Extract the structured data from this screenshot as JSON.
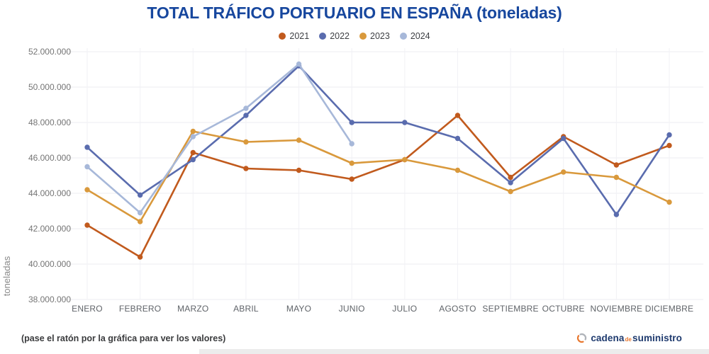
{
  "title": "TOTAL TRÁFICO PORTUARIO EN ESPAÑA (toneladas)",
  "footer": {
    "hint": "(pase el ratón por la gráfica para ver los valores)",
    "logo": {
      "part1": "cadena",
      "part2": "de",
      "part3": "suministro"
    }
  },
  "colors": {
    "title": "#17479e",
    "grid": "#ededf2",
    "axis_text": "#757575",
    "month_text": "#5f6368",
    "logo_navy": "#1e3a6e",
    "logo_orange": "#e8772e",
    "logo_gray": "#b0b4ba"
  },
  "chart_data": {
    "type": "line",
    "title": "TOTAL TRÁFICO PORTUARIO EN ESPAÑA (toneladas)",
    "ylabel": "toneladas",
    "xlabel": "",
    "grid": true,
    "legend_position": "top",
    "ylim": [
      38000000,
      52000000
    ],
    "y_ticks": [
      "52.000.000",
      "50.000.000",
      "48.000.000",
      "46.000.000",
      "44.000.000",
      "42.000.000",
      "40.000.000",
      "38.000.000"
    ],
    "categories": [
      "ENERO",
      "FEBRERO",
      "MARZO",
      "ABRIL",
      "MAYO",
      "JUNIO",
      "JULIO",
      "AGOSTO",
      "SEPTIEMBRE",
      "OCTUBRE",
      "NOVIEMBRE",
      "DICIEMBRE"
    ],
    "series": [
      {
        "name": "2021",
        "color": "#c15a1d",
        "values": [
          42200000,
          40400000,
          46300000,
          45400000,
          45300000,
          44800000,
          45900000,
          48400000,
          44900000,
          47200000,
          45600000,
          46700000
        ]
      },
      {
        "name": "2022",
        "color": "#5a6cae",
        "values": [
          46600000,
          43900000,
          45900000,
          48400000,
          51200000,
          48000000,
          48000000,
          47100000,
          44600000,
          47100000,
          42800000,
          47300000
        ]
      },
      {
        "name": "2023",
        "color": "#d9993c",
        "values": [
          44200000,
          42400000,
          47500000,
          46900000,
          47000000,
          45700000,
          45900000,
          45300000,
          44100000,
          45200000,
          44900000,
          43500000
        ]
      },
      {
        "name": "2024",
        "color": "#a7b8d9",
        "values": [
          45500000,
          42900000,
          47200000,
          48800000,
          51300000,
          46800000
        ]
      }
    ]
  }
}
